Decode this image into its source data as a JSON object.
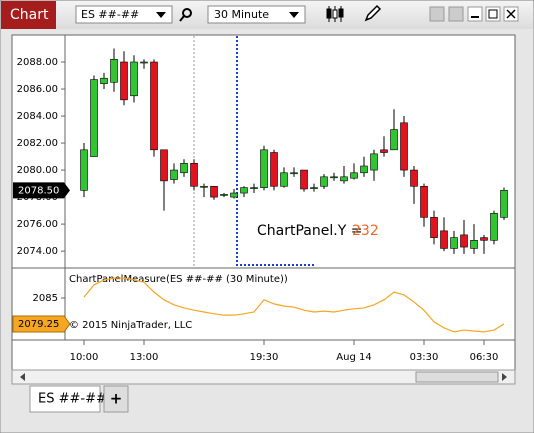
{
  "window": {
    "title": "Chart",
    "instrument": "ES ##-##",
    "interval": "30 Minute",
    "tab": "ES ##-##",
    "add_tab": "+"
  },
  "chart_data": [
    {
      "type": "candlestick",
      "categories": [
        "10:00",
        null,
        null,
        null,
        null,
        null,
        "13:00",
        null,
        null,
        null,
        null,
        null,
        null,
        null,
        null,
        null,
        null,
        null,
        "19:30",
        null,
        null,
        null,
        null,
        null,
        null,
        null,
        null,
        "Aug 14",
        null,
        null,
        null,
        null,
        null,
        null,
        "03:30",
        null,
        null,
        null,
        null,
        null,
        "06:30",
        null,
        null
      ],
      "open": [
        2078.5,
        2081,
        2086.4,
        2086.5,
        2088,
        2085.5,
        2088,
        2088,
        2081.5,
        2079.3,
        2079.8,
        2080.5,
        2078.8,
        2078.8,
        2078.2,
        2078,
        2078.3,
        2078.7,
        2078.7,
        2081.3,
        2078.8,
        2079.8,
        2080,
        2078.7,
        2078.8,
        2079.5,
        2079.2,
        2079.4,
        2079.8,
        2080,
        2081.5,
        2081.5,
        2083.5,
        2080,
        2078.8,
        2076.5,
        2075.5,
        2074.2,
        2075.2,
        2074.2,
        2075,
        2074.8,
        2076.5
      ],
      "high": [
        2082,
        2087,
        2087.2,
        2089,
        2088.8,
        2088.5,
        2088.2,
        2088.2,
        2081.5,
        2080.5,
        2080.8,
        2080.8,
        2079,
        2078.8,
        2078.3,
        2078.6,
        2078.8,
        2079,
        2081.8,
        2081.5,
        2080.2,
        2080.2,
        2080,
        2079,
        2079.7,
        2079.8,
        2080.3,
        2080.5,
        2081,
        2081.5,
        2082.5,
        2084.5,
        2084,
        2080.3,
        2079,
        2077,
        2076.5,
        2075.5,
        2076.3,
        2076,
        2075.2,
        2077,
        2078.7
      ],
      "low": [
        2078,
        2081,
        2086,
        2085.8,
        2084.8,
        2085,
        2087.5,
        2081,
        2077,
        2079,
        2079.5,
        2078.5,
        2078,
        2077.8,
        2078,
        2077.9,
        2078,
        2078.3,
        2078.5,
        2078.5,
        2078.7,
        2079.5,
        2078.4,
        2078.4,
        2078.6,
        2079.2,
        2079,
        2079.3,
        2079.5,
        2079.2,
        2081,
        2081.5,
        2079.5,
        2077.5,
        2075.8,
        2074.5,
        2074,
        2073.8,
        2073.8,
        2073.8,
        2073.8,
        2074.5,
        2076.3
      ],
      "close": [
        2081.5,
        2086.7,
        2086.8,
        2088.2,
        2085.2,
        2088,
        2088,
        2081.5,
        2079.2,
        2080,
        2080.5,
        2078.8,
        2078.8,
        2078,
        2078.2,
        2078.3,
        2078.7,
        2078.7,
        2081.5,
        2078.8,
        2079.8,
        2079.8,
        2078.6,
        2078.7,
        2079.5,
        2079.5,
        2079.5,
        2079.8,
        2080.3,
        2081.2,
        2081.3,
        2083,
        2080,
        2078.8,
        2076.5,
        2075,
        2074.2,
        2075,
        2074.3,
        2074.8,
        2074.8,
        2076.8,
        2078.5
      ],
      "up_color": "#33c433",
      "down_color": "#e0141e",
      "ylim": [
        2072.75,
        2090
      ],
      "yticks": [
        {
          "value": 2074,
          "label": "2074.00"
        },
        {
          "value": 2076,
          "label": "2076.00"
        },
        {
          "value": 2078,
          "label": "2078.00"
        },
        {
          "value": 2080,
          "label": "2080.00"
        },
        {
          "value": 2082,
          "label": "2082.00"
        },
        {
          "value": 2084,
          "label": "2084.00"
        },
        {
          "value": 2086,
          "label": "2086.00"
        },
        {
          "value": 2088,
          "label": "2088.00"
        }
      ],
      "last_price": {
        "value": 2078.5,
        "label": "2078.50"
      },
      "annotation": {
        "text": "ChartPanel.Y =",
        "value": 232
      }
    },
    {
      "type": "line",
      "title": "ChartPanelMeasure(ES ##-## (30 Minute))",
      "values": [
        2085.2,
        2087.9,
        2089,
        2089.4,
        2089.4,
        2089,
        2088.5,
        2086.3,
        2084.6,
        2083.5,
        2082.8,
        2082.3,
        2081.9,
        2081.5,
        2081.2,
        2081.2,
        2081.5,
        2081.9,
        2084.6,
        2083.7,
        2083.2,
        2083,
        2082.3,
        2081.9,
        2082.1,
        2081.9,
        2082.3,
        2082.6,
        2082.8,
        2083.5,
        2084.6,
        2086.3,
        2085.7,
        2084.1,
        2082.3,
        2079.7,
        2078.4,
        2077.5,
        2077.9,
        2077.7,
        2077.5,
        2077.9,
        2079.25
      ],
      "color": "#f5a623",
      "ylim": [
        2075.7,
        2091.2
      ],
      "yticks": [
        2085
      ],
      "last_value": 2079.25,
      "watermark": "© 2015 NinjaTrader, LLC"
    }
  ]
}
